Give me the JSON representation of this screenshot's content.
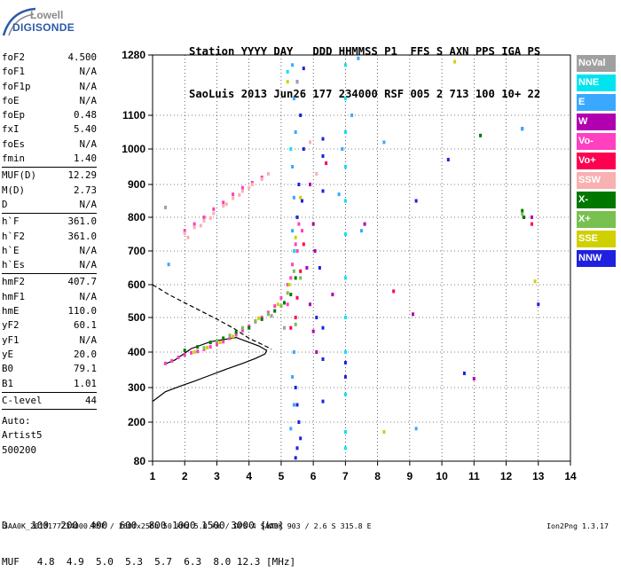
{
  "logo": {
    "line1": "Lowell",
    "line2": "DIGISONDE"
  },
  "header": {
    "row1": "Station YYYY DAY   DDD HHMMSS P1  FFS S AXN PPS IGA PS",
    "row2": "SaoLuis 2013 Jun26 177 234000 RSF 005 2 713 100 10+ 22"
  },
  "params": {
    "group1": [
      {
        "k": "foF2",
        "v": "4.500"
      },
      {
        "k": "foF1",
        "v": "N/A"
      },
      {
        "k": "foF1p",
        "v": "N/A"
      },
      {
        "k": "foE",
        "v": "N/A"
      },
      {
        "k": "foEp",
        "v": "0.48"
      },
      {
        "k": "fxI",
        "v": "5.40"
      },
      {
        "k": "foEs",
        "v": "N/A"
      },
      {
        "k": "fmin",
        "v": "1.40"
      }
    ],
    "group2": [
      {
        "k": "MUF(D)",
        "v": "12.29"
      },
      {
        "k": "M(D)",
        "v": "2.73"
      },
      {
        "k": "D",
        "v": "N/A"
      }
    ],
    "group3": [
      {
        "k": "h`F",
        "v": "361.0"
      },
      {
        "k": "h`F2",
        "v": "361.0"
      },
      {
        "k": "h`E",
        "v": "N/A"
      },
      {
        "k": "h`Es",
        "v": "N/A"
      }
    ],
    "group4": [
      {
        "k": "hmF2",
        "v": "407.7"
      },
      {
        "k": "hmF1",
        "v": "N/A"
      },
      {
        "k": "hmE",
        "v": "110.0"
      },
      {
        "k": "yF2",
        "v": "60.1"
      },
      {
        "k": "yF1",
        "v": "N/A"
      },
      {
        "k": "yE",
        "v": "20.0"
      },
      {
        "k": "B0",
        "v": "79.1"
      },
      {
        "k": "B1",
        "v": "1.01"
      }
    ],
    "group5": [
      {
        "k": "C-level",
        "v": "44"
      }
    ],
    "group6": [
      {
        "k": "Auto:",
        "v": ""
      },
      {
        "k": "Artist5",
        "v": ""
      },
      {
        "k": "500200",
        "v": ""
      }
    ]
  },
  "footer": {
    "d_row": "D    100  200  400  600  800 1000 1500 3000 [km]",
    "muf_row": "MUF   4.8  4.9  5.0  5.3  5.7  6.3  8.0 12.3 [MHz]",
    "file_line": "SAA0K_2013177234000.RSF / 260fx256h 50 kHz 5.0 km / DPS-4 SAA0K 903 / 2.6 S 315.8 E",
    "version": "Ion2Png 1.3.17"
  },
  "legend": [
    {
      "label": "NoVal",
      "color": "#a0a0a0"
    },
    {
      "label": "NNE",
      "color": "#00e4f0"
    },
    {
      "label": "E",
      "color": "#3aa8ff"
    },
    {
      "label": "W",
      "color": "#b000b0"
    },
    {
      "label": "Vo-",
      "color": "#ff40c0"
    },
    {
      "label": "Vo+",
      "color": "#ff0050"
    },
    {
      "label": "SSW",
      "color": "#f8b0b0"
    },
    {
      "label": "X-",
      "color": "#007800"
    },
    {
      "label": "X+",
      "color": "#78c050"
    },
    {
      "label": "SSE",
      "color": "#d0d000"
    },
    {
      "label": "NNW",
      "color": "#2020e0"
    }
  ],
  "chart_data": {
    "type": "scatter",
    "xlim": [
      1,
      14
    ],
    "ylim": [
      80,
      1280
    ],
    "x_ticks": [
      "1",
      "2",
      "3",
      "4",
      "5",
      "6",
      "7",
      "8",
      "9",
      "10",
      "11",
      "12",
      "13",
      "14"
    ],
    "y_ticks": [
      "80",
      "200",
      "300",
      "400",
      "500",
      "600",
      "700",
      "800",
      "900",
      "1000",
      "1100",
      "1280"
    ],
    "y_tick_values": [
      80,
      200,
      300,
      400,
      500,
      600,
      700,
      800,
      900,
      1000,
      1100,
      1280
    ],
    "grid": true,
    "series": [
      {
        "name": "Vo-",
        "points": [
          [
            1.4,
            368
          ],
          [
            1.6,
            375
          ],
          [
            1.8,
            385
          ],
          [
            2.0,
            392
          ],
          [
            2.2,
            398
          ],
          [
            2.4,
            402
          ],
          [
            2.6,
            408
          ],
          [
            2.8,
            415
          ],
          [
            3.0,
            422
          ],
          [
            3.2,
            430
          ],
          [
            3.4,
            440
          ],
          [
            3.6,
            450
          ],
          [
            3.8,
            462
          ],
          [
            4.0,
            475
          ],
          [
            4.2,
            488
          ],
          [
            4.4,
            500
          ],
          [
            4.6,
            515
          ],
          [
            4.8,
            535
          ],
          [
            5.0,
            560
          ],
          [
            5.2,
            600
          ],
          [
            5.35,
            660
          ],
          [
            5.45,
            720
          ],
          [
            5.55,
            780
          ],
          [
            2.0,
            760
          ],
          [
            2.3,
            780
          ],
          [
            2.6,
            800
          ],
          [
            2.9,
            825
          ],
          [
            3.2,
            845
          ],
          [
            3.5,
            870
          ],
          [
            3.8,
            890
          ],
          [
            4.1,
            905
          ],
          [
            4.4,
            920
          ],
          [
            5.2,
            540
          ],
          [
            5.3,
            620
          ],
          [
            5.5,
            700
          ],
          [
            5.65,
            760
          ]
        ]
      },
      {
        "name": "X-",
        "points": [
          [
            2.0,
            405
          ],
          [
            2.4,
            415
          ],
          [
            2.8,
            428
          ],
          [
            3.2,
            440
          ],
          [
            3.6,
            458
          ],
          [
            4.0,
            470
          ],
          [
            4.4,
            495
          ],
          [
            4.8,
            520
          ],
          [
            5.1,
            545
          ],
          [
            5.3,
            570
          ],
          [
            5.45,
            620
          ],
          [
            12.5,
            820
          ],
          [
            12.55,
            800
          ],
          [
            11.2,
            1040
          ]
        ]
      },
      {
        "name": "NNW",
        "points": [
          [
            5.5,
            1200
          ],
          [
            5.6,
            1100
          ],
          [
            5.7,
            1000
          ],
          [
            5.55,
            900
          ],
          [
            5.65,
            850
          ],
          [
            5.5,
            800
          ],
          [
            5.45,
            300
          ],
          [
            5.5,
            250
          ],
          [
            5.55,
            200
          ],
          [
            5.6,
            150
          ],
          [
            5.5,
            120
          ],
          [
            5.45,
            90
          ],
          [
            5.7,
            1240
          ],
          [
            6.3,
            1030
          ],
          [
            6.3,
            980
          ],
          [
            6.3,
            880
          ],
          [
            6.3,
            470
          ],
          [
            6.3,
            380
          ],
          [
            6.3,
            260
          ],
          [
            7.0,
            370
          ],
          [
            7.0,
            330
          ],
          [
            9.2,
            850
          ],
          [
            10.2,
            970
          ],
          [
            10.7,
            340
          ],
          [
            12.5,
            1060
          ],
          [
            13.0,
            540
          ],
          [
            6.1,
            500
          ],
          [
            6.2,
            650
          ]
        ]
      },
      {
        "name": "W",
        "points": [
          [
            5.9,
            900
          ],
          [
            6.0,
            780
          ],
          [
            6.05,
            700
          ],
          [
            5.8,
            650
          ],
          [
            5.9,
            540
          ],
          [
            6.0,
            460
          ],
          [
            6.1,
            400
          ],
          [
            9.1,
            510
          ],
          [
            11.0,
            325
          ],
          [
            12.8,
            800
          ],
          [
            7.6,
            780
          ],
          [
            6.6,
            570
          ]
        ]
      },
      {
        "name": "E",
        "points": [
          [
            5.35,
            1250
          ],
          [
            5.4,
            1150
          ],
          [
            5.45,
            1050
          ],
          [
            5.35,
            950
          ],
          [
            5.4,
            860
          ],
          [
            5.35,
            760
          ],
          [
            5.4,
            400
          ],
          [
            5.35,
            330
          ],
          [
            5.4,
            250
          ],
          [
            5.3,
            180
          ],
          [
            7.4,
            1270
          ],
          [
            7.2,
            1100
          ],
          [
            6.8,
            870
          ],
          [
            7.5,
            760
          ],
          [
            8.2,
            1020
          ],
          [
            9.2,
            180
          ],
          [
            12.5,
            1060
          ],
          [
            1.5,
            660
          ],
          [
            6.9,
            1000
          ]
        ]
      },
      {
        "name": "NNE",
        "points": [
          [
            7.0,
            1250
          ],
          [
            7.0,
            1150
          ],
          [
            7.0,
            1050
          ],
          [
            7.0,
            950
          ],
          [
            7.0,
            850
          ],
          [
            7.0,
            750
          ],
          [
            7.0,
            620
          ],
          [
            7.0,
            500
          ],
          [
            7.0,
            400
          ],
          [
            7.0,
            280
          ],
          [
            7.0,
            170
          ],
          [
            7.0,
            120
          ],
          [
            5.2,
            1230
          ],
          [
            5.3,
            1000
          ],
          [
            5.4,
            700
          ]
        ]
      },
      {
        "name": "X+",
        "points": [
          [
            2.6,
            412
          ],
          [
            3.0,
            432
          ],
          [
            3.4,
            448
          ],
          [
            3.8,
            470
          ],
          [
            4.2,
            490
          ],
          [
            4.6,
            510
          ],
          [
            5.0,
            535
          ],
          [
            5.2,
            575
          ],
          [
            5.4,
            640
          ],
          [
            12.5,
            810
          ],
          [
            5.45,
            480
          ],
          [
            5.6,
            620
          ]
        ]
      },
      {
        "name": "SSE",
        "points": [
          [
            2.3,
            400
          ],
          [
            2.7,
            413
          ],
          [
            3.1,
            428
          ],
          [
            3.5,
            445
          ],
          [
            4.3,
            498
          ],
          [
            4.9,
            540
          ],
          [
            5.25,
            600
          ],
          [
            5.45,
            740
          ],
          [
            5.6,
            860
          ],
          [
            10.4,
            1260
          ],
          [
            12.9,
            610
          ],
          [
            5.2,
            1200
          ],
          [
            8.2,
            170
          ]
        ]
      },
      {
        "name": "SSW",
        "points": [
          [
            2.0,
            752
          ],
          [
            2.3,
            770
          ],
          [
            2.6,
            790
          ],
          [
            2.9,
            812
          ],
          [
            3.2,
            835
          ],
          [
            3.5,
            858
          ],
          [
            3.8,
            880
          ],
          [
            4.1,
            900
          ],
          [
            4.4,
            915
          ],
          [
            4.6,
            930
          ],
          [
            2.1,
            740
          ],
          [
            2.5,
            775
          ],
          [
            2.8,
            798
          ],
          [
            3.3,
            840
          ],
          [
            3.7,
            868
          ],
          [
            4.0,
            890
          ],
          [
            5.9,
            1020
          ],
          [
            6.1,
            930
          ]
        ]
      },
      {
        "name": "Vo+",
        "points": [
          [
            5.5,
            560
          ],
          [
            5.6,
            640
          ],
          [
            5.7,
            720
          ],
          [
            5.45,
            500
          ],
          [
            5.3,
            470
          ],
          [
            8.5,
            580
          ],
          [
            12.8,
            780
          ],
          [
            6.4,
            960
          ]
        ]
      },
      {
        "name": "NoVal",
        "points": [
          [
            5.1,
            470
          ],
          [
            4.7,
            505
          ],
          [
            5.5,
            1200
          ],
          [
            1.4,
            830
          ]
        ]
      }
    ],
    "lines": [
      {
        "name": "profile-solid",
        "style": "solid",
        "points": [
          [
            1.0,
            260
          ],
          [
            1.4,
            288
          ],
          [
            1.8,
            302
          ],
          [
            2.3,
            318
          ],
          [
            2.8,
            335
          ],
          [
            3.3,
            352
          ],
          [
            3.8,
            368
          ],
          [
            4.2,
            382
          ],
          [
            4.5,
            395
          ],
          [
            4.55,
            405
          ],
          [
            4.3,
            418
          ],
          [
            3.6,
            442
          ],
          [
            2.8,
            430
          ],
          [
            2.2,
            410
          ],
          [
            1.7,
            378
          ],
          [
            1.35,
            365
          ]
        ]
      },
      {
        "name": "model-dashed",
        "style": "dashed",
        "points": [
          [
            1.0,
            600
          ],
          [
            1.5,
            570
          ],
          [
            2.0,
            545
          ],
          [
            2.5,
            520
          ],
          [
            3.0,
            495
          ],
          [
            3.5,
            470
          ],
          [
            4.0,
            440
          ],
          [
            4.5,
            418
          ],
          [
            4.7,
            408
          ]
        ]
      }
    ]
  }
}
